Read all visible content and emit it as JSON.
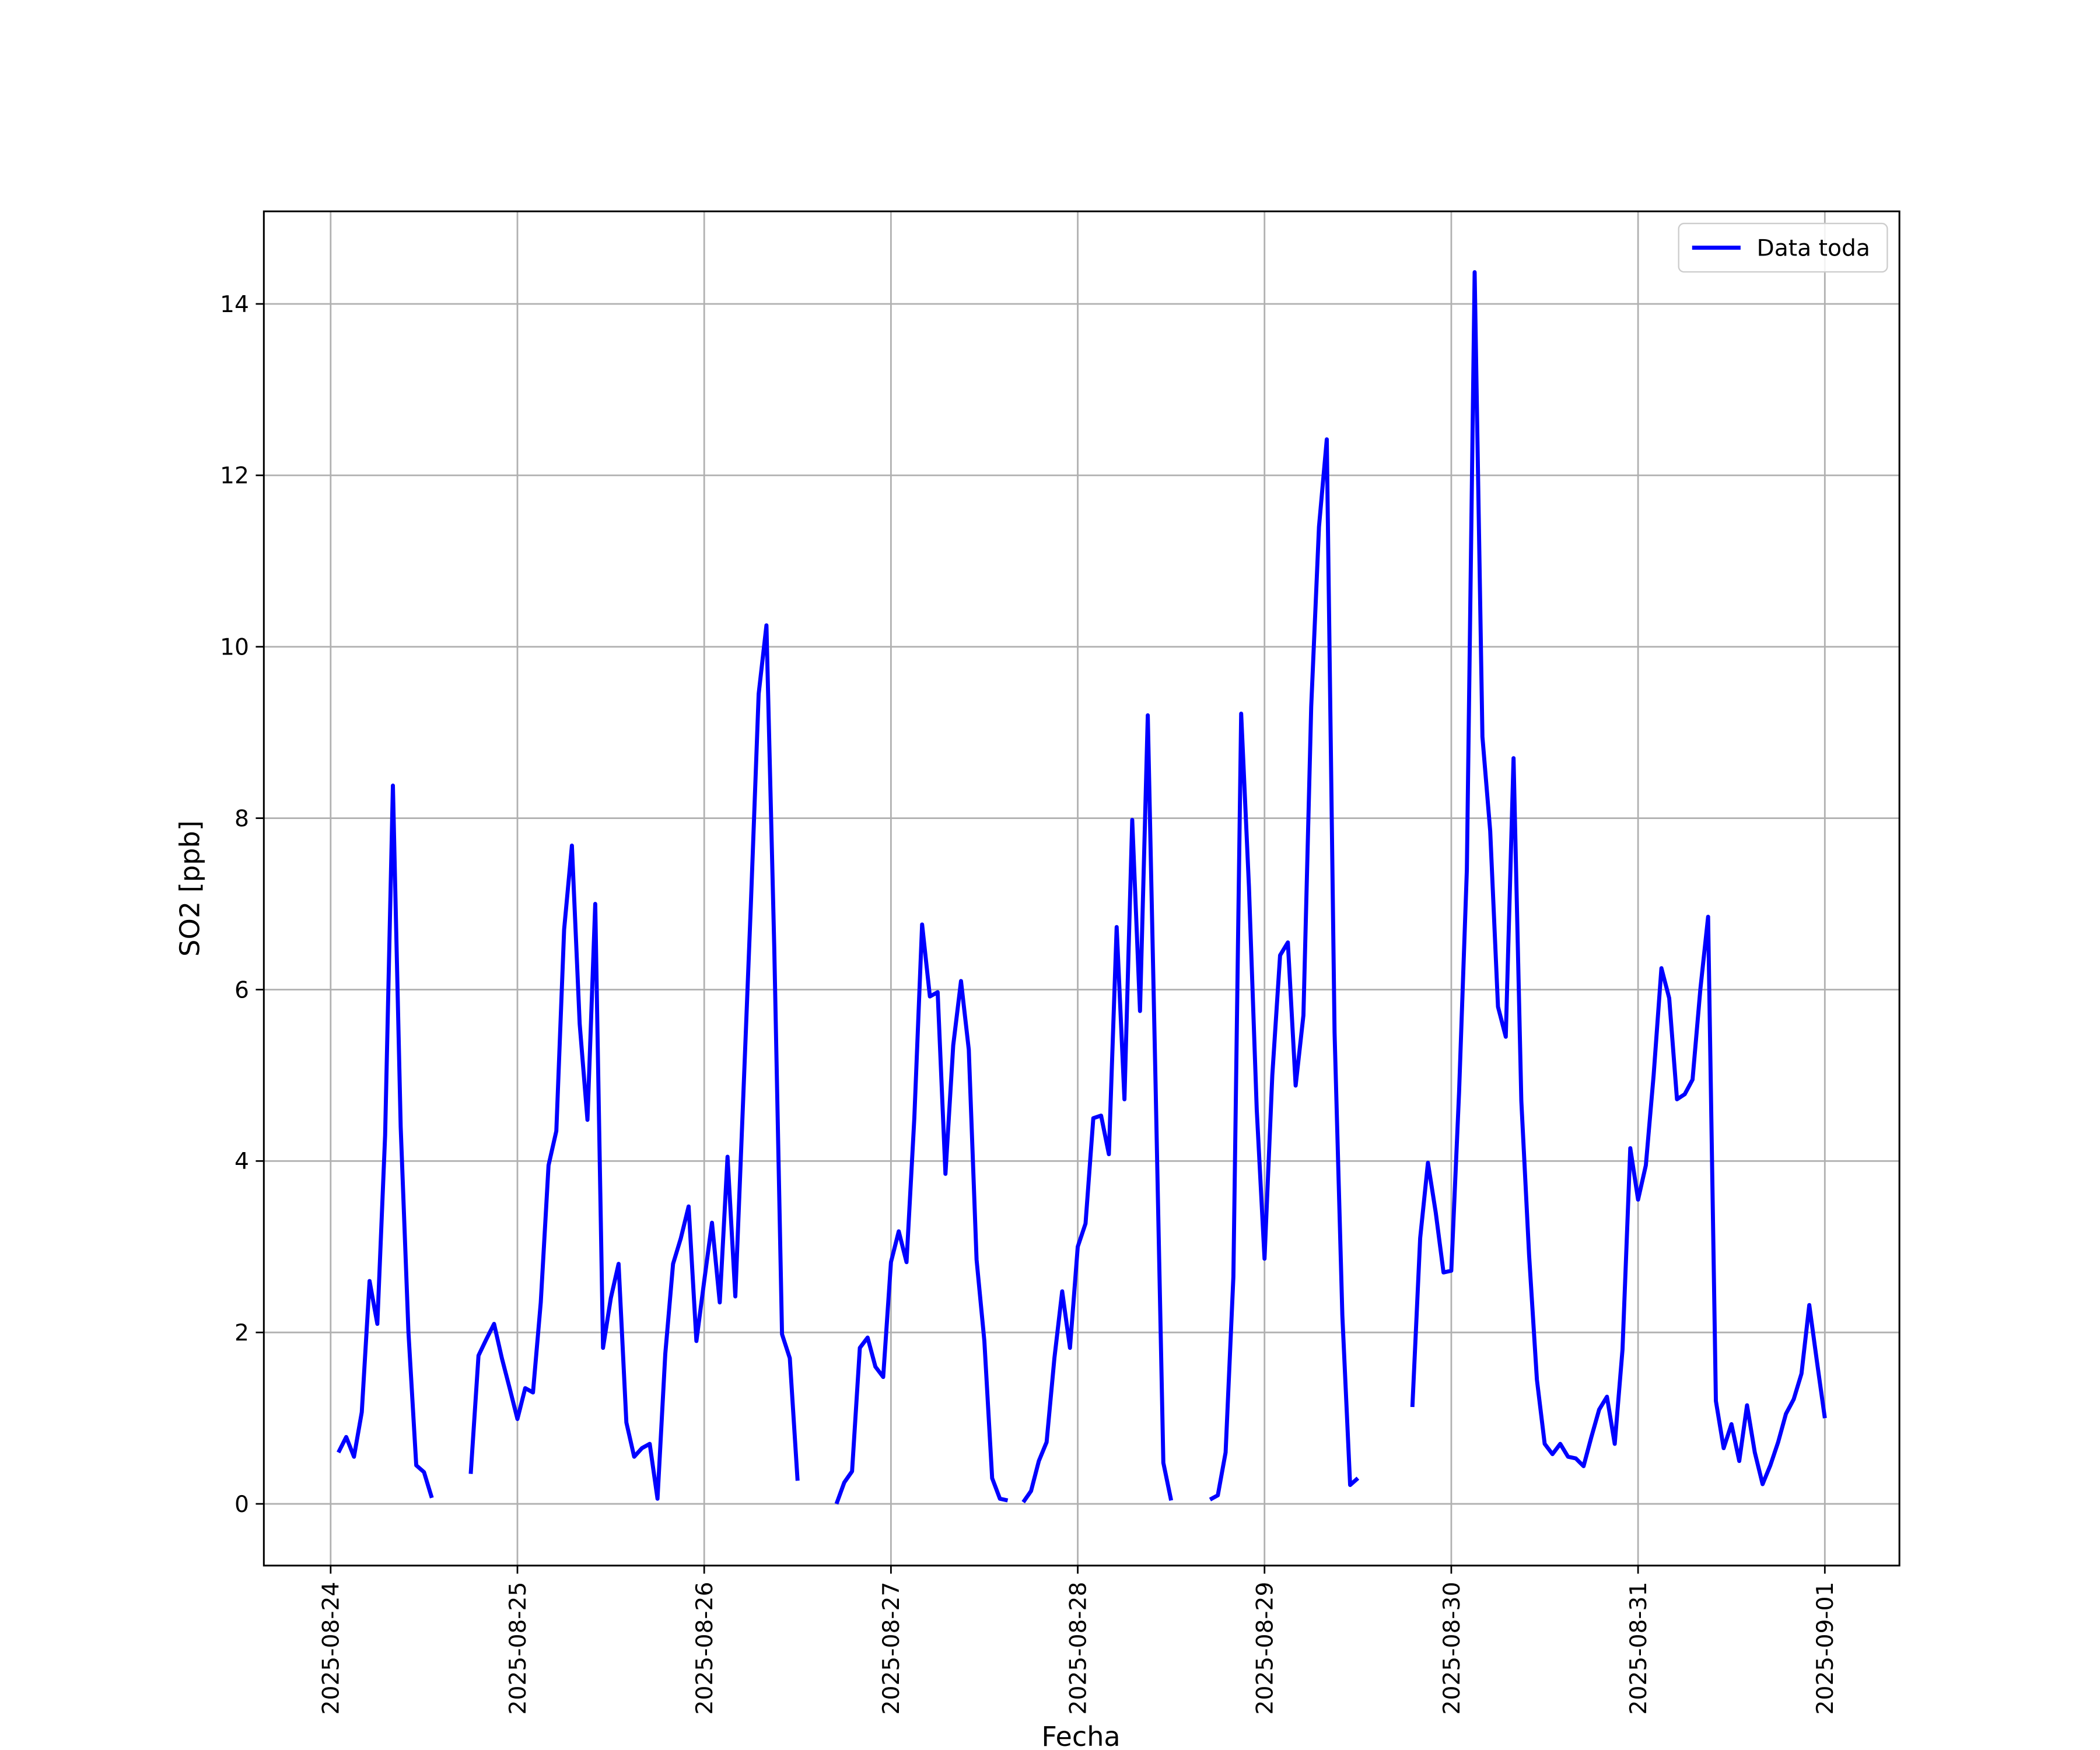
{
  "chart_data": {
    "type": "line",
    "x_label": "Fecha",
    "y_label": "SO2 [ppb]",
    "xlim": [
      "2025-08-23 15:25",
      "2025-09-01 09:35"
    ],
    "xticks": [
      "2025-08-24",
      "2025-08-25",
      "2025-08-26",
      "2025-08-27",
      "2025-08-28",
      "2025-08-29",
      "2025-08-30",
      "2025-08-31",
      "2025-09-01"
    ],
    "ylim": [
      -0.72,
      15.08
    ],
    "yticks": [
      0,
      2,
      4,
      6,
      8,
      10,
      12,
      14
    ],
    "grid": true,
    "legend": "upper right",
    "x": [
      "2025-08-24 01:00",
      "2025-08-24 02:00",
      "2025-08-24 03:00",
      "2025-08-24 04:00",
      "2025-08-24 05:00",
      "2025-08-24 06:00",
      "2025-08-24 07:00",
      "2025-08-24 08:00",
      "2025-08-24 09:00",
      "2025-08-24 10:00",
      "2025-08-24 11:00",
      "2025-08-24 12:00",
      "2025-08-24 13:00",
      "2025-08-24 14:00",
      "2025-08-24 18:00",
      "2025-08-24 19:00",
      "2025-08-24 20:00",
      "2025-08-24 21:00",
      "2025-08-24 22:00",
      "2025-08-24 23:00",
      "2025-08-25 00:00",
      "2025-08-25 01:00",
      "2025-08-25 02:00",
      "2025-08-25 03:00",
      "2025-08-25 04:00",
      "2025-08-25 05:00",
      "2025-08-25 06:00",
      "2025-08-25 07:00",
      "2025-08-25 08:00",
      "2025-08-25 09:00",
      "2025-08-25 10:00",
      "2025-08-25 11:00",
      "2025-08-25 12:00",
      "2025-08-25 13:00",
      "2025-08-25 14:00",
      "2025-08-25 15:00",
      "2025-08-25 16:00",
      "2025-08-25 17:00",
      "2025-08-25 18:00",
      "2025-08-25 19:00",
      "2025-08-25 20:00",
      "2025-08-25 21:00",
      "2025-08-25 22:00",
      "2025-08-25 23:00",
      "2025-08-26 00:00",
      "2025-08-26 01:00",
      "2025-08-26 02:00",
      "2025-08-26 03:00",
      "2025-08-26 04:00",
      "2025-08-26 05:00",
      "2025-08-26 06:00",
      "2025-08-26 07:00",
      "2025-08-26 08:00",
      "2025-08-26 09:00",
      "2025-08-26 10:00",
      "2025-08-26 11:00",
      "2025-08-26 12:00",
      "2025-08-26 13:00",
      "2025-08-26 17:00",
      "2025-08-26 18:00",
      "2025-08-26 19:00",
      "2025-08-26 20:00",
      "2025-08-26 21:00",
      "2025-08-26 22:00",
      "2025-08-26 23:00",
      "2025-08-27 00:00",
      "2025-08-27 01:00",
      "2025-08-27 02:00",
      "2025-08-27 03:00",
      "2025-08-27 04:00",
      "2025-08-27 05:00",
      "2025-08-27 06:00",
      "2025-08-27 07:00",
      "2025-08-27 08:00",
      "2025-08-27 09:00",
      "2025-08-27 10:00",
      "2025-08-27 11:00",
      "2025-08-27 12:00",
      "2025-08-27 13:00",
      "2025-08-27 14:00",
      "2025-08-27 15:00",
      "2025-08-27 16:00",
      "2025-08-27 17:00",
      "2025-08-27 18:00",
      "2025-08-27 19:00",
      "2025-08-27 20:00",
      "2025-08-27 21:00",
      "2025-08-27 22:00",
      "2025-08-27 23:00",
      "2025-08-28 00:00",
      "2025-08-28 01:00",
      "2025-08-28 02:00",
      "2025-08-28 03:00",
      "2025-08-28 04:00",
      "2025-08-28 05:00",
      "2025-08-28 06:00",
      "2025-08-28 07:00",
      "2025-08-28 08:00",
      "2025-08-28 09:00",
      "2025-08-28 10:00",
      "2025-08-28 11:00",
      "2025-08-28 12:00",
      "2025-08-28 13:00",
      "2025-08-28 17:00",
      "2025-08-28 18:00",
      "2025-08-28 19:00",
      "2025-08-28 20:00",
      "2025-08-28 21:00",
      "2025-08-28 22:00",
      "2025-08-28 23:00",
      "2025-08-29 00:00",
      "2025-08-29 01:00",
      "2025-08-29 02:00",
      "2025-08-29 03:00",
      "2025-08-29 04:00",
      "2025-08-29 05:00",
      "2025-08-29 06:00",
      "2025-08-29 07:00",
      "2025-08-29 08:00",
      "2025-08-29 09:00",
      "2025-08-29 10:00",
      "2025-08-29 11:00",
      "2025-08-29 12:00",
      "2025-08-29 13:00",
      "2025-08-29 19:00",
      "2025-08-29 20:00",
      "2025-08-29 21:00",
      "2025-08-29 22:00",
      "2025-08-29 23:00",
      "2025-08-30 00:00",
      "2025-08-30 01:00",
      "2025-08-30 02:00",
      "2025-08-30 03:00",
      "2025-08-30 04:00",
      "2025-08-30 05:00",
      "2025-08-30 06:00",
      "2025-08-30 07:00",
      "2025-08-30 08:00",
      "2025-08-30 09:00",
      "2025-08-30 10:00",
      "2025-08-30 11:00",
      "2025-08-30 12:00",
      "2025-08-30 13:00",
      "2025-08-30 14:00",
      "2025-08-30 15:00",
      "2025-08-30 16:00",
      "2025-08-30 17:00",
      "2025-08-30 18:00",
      "2025-08-30 19:00",
      "2025-08-30 20:00",
      "2025-08-30 21:00",
      "2025-08-30 22:00",
      "2025-08-30 23:00",
      "2025-08-31 00:00",
      "2025-08-31 01:00",
      "2025-08-31 02:00",
      "2025-08-31 03:00",
      "2025-08-31 04:00",
      "2025-08-31 05:00",
      "2025-08-31 06:00",
      "2025-08-31 07:00",
      "2025-08-31 08:00",
      "2025-08-31 09:00",
      "2025-08-31 10:00",
      "2025-08-31 11:00",
      "2025-08-31 12:00",
      "2025-08-31 13:00",
      "2025-08-31 14:00",
      "2025-08-31 15:00",
      "2025-08-31 16:00",
      "2025-08-31 17:00",
      "2025-08-31 18:00",
      "2025-08-31 19:00",
      "2025-08-31 20:00",
      "2025-08-31 21:00",
      "2025-08-31 22:00",
      "2025-08-31 23:00",
      "2025-09-01 00:00"
    ],
    "series": [
      {
        "name": "Data toda",
        "color": "#0000ff",
        "values": [
          0.6,
          0.78,
          0.55,
          1.07,
          2.6,
          2.1,
          4.3,
          8.38,
          4.4,
          2.0,
          0.45,
          0.37,
          0.07,
          null,
          0.35,
          1.73,
          1.92,
          2.1,
          1.7,
          1.35,
          0.99,
          1.35,
          1.3,
          2.35,
          3.95,
          4.35,
          6.7,
          7.68,
          5.6,
          4.48,
          7.0,
          1.82,
          2.4,
          2.8,
          0.95,
          0.55,
          0.65,
          0.7,
          0.06,
          1.75,
          2.8,
          3.1,
          3.47,
          1.9,
          2.6,
          3.28,
          2.35,
          4.05,
          2.42,
          4.7,
          7.0,
          9.45,
          10.25,
          6.5,
          1.98,
          1.7,
          0.27,
          null,
          0.0,
          0.25,
          0.38,
          1.82,
          1.94,
          1.6,
          1.48,
          2.82,
          3.18,
          2.82,
          4.5,
          6.76,
          5.92,
          5.97,
          3.85,
          5.35,
          6.1,
          5.3,
          2.85,
          1.9,
          0.3,
          0.06,
          0.04,
          null,
          0.02,
          0.15,
          0.5,
          0.72,
          1.7,
          2.48,
          1.82,
          3.0,
          3.27,
          4.5,
          4.53,
          4.08,
          6.73,
          4.72,
          7.98,
          5.75,
          9.2,
          4.9,
          0.48,
          0.04,
          null,
          0.05,
          0.1,
          0.6,
          2.65,
          9.22,
          7.2,
          4.6,
          2.86,
          5.0,
          6.4,
          6.55,
          4.88,
          5.7,
          9.3,
          11.4,
          12.42,
          5.5,
          2.2,
          0.22,
          0.3,
          null,
          1.13,
          3.1,
          3.98,
          3.4,
          2.7,
          2.72,
          4.8,
          7.4,
          14.37,
          8.95,
          7.85,
          5.8,
          5.45,
          8.7,
          4.7,
          2.9,
          1.45,
          0.7,
          0.58,
          0.7,
          0.55,
          0.53,
          0.44,
          0.78,
          1.1,
          1.25,
          0.7,
          1.8,
          4.15,
          3.55,
          3.95,
          5.0,
          6.25,
          5.9,
          4.72,
          4.78,
          4.95,
          6.0,
          6.85,
          1.2,
          0.65,
          0.93,
          0.5,
          1.15,
          0.6,
          0.23,
          0.45,
          0.72,
          1.05,
          1.22,
          1.52,
          2.32,
          1.65,
          1.0
        ]
      }
    ]
  }
}
